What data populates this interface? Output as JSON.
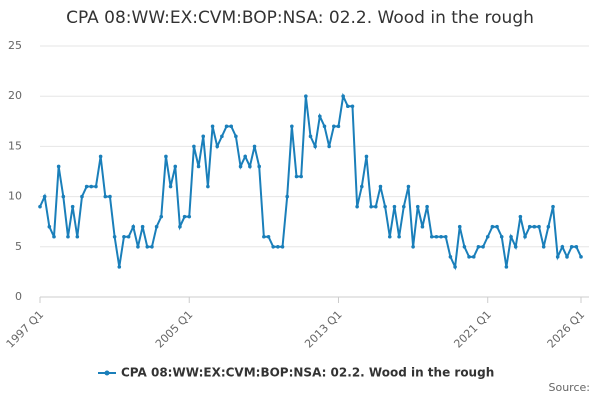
{
  "chart_data": {
    "type": "line",
    "title": "CPA 08:WW:EX:CVM:BOP:NSA: 02.2. Wood in the rough",
    "source": "Source:",
    "categories": [
      "1997 Q1",
      null,
      null,
      null,
      null,
      null,
      null,
      null,
      null,
      null,
      null,
      null,
      null,
      null,
      null,
      null,
      null,
      null,
      null,
      null,
      null,
      null,
      null,
      null,
      null,
      null,
      null,
      null,
      null,
      null,
      null,
      null,
      "2005 Q1",
      null,
      null,
      null,
      null,
      null,
      null,
      null,
      null,
      null,
      null,
      null,
      null,
      null,
      null,
      null,
      null,
      null,
      null,
      null,
      null,
      null,
      null,
      null,
      null,
      null,
      null,
      null,
      null,
      null,
      null,
      null,
      "2013 Q1",
      null,
      null,
      null,
      null,
      null,
      null,
      null,
      null,
      null,
      null,
      null,
      null,
      null,
      null,
      null,
      null,
      null,
      null,
      null,
      null,
      null,
      null,
      null,
      null,
      null,
      null,
      null,
      null,
      null,
      null,
      null,
      "2021 Q1",
      null,
      null,
      null,
      null,
      null,
      null,
      null,
      null,
      null,
      null,
      null,
      null,
      null,
      null,
      null,
      null,
      null,
      null,
      null,
      "2026 Q1"
    ],
    "series": [
      {
        "name": "CPA 08:WW:EX:CVM:BOP:NSA: 02.2. Wood in the rough",
        "color": "#1a7fba",
        "values": [
          9,
          10,
          7,
          6,
          13,
          10,
          6,
          9,
          6,
          10,
          11,
          11,
          11,
          14,
          10,
          10,
          6,
          3,
          6,
          6,
          7,
          5,
          7,
          5,
          5,
          7,
          8,
          14,
          11,
          13,
          7,
          8,
          8,
          15,
          13,
          16,
          11,
          17,
          15,
          16,
          17,
          17,
          16,
          13,
          14,
          13,
          15,
          13,
          6,
          6,
          5,
          5,
          5,
          10,
          17,
          12,
          12,
          20,
          16,
          15,
          18,
          17,
          15,
          17,
          17,
          20,
          19,
          19,
          9,
          11,
          14,
          9,
          9,
          11,
          9,
          6,
          9,
          6,
          9,
          11,
          5,
          9,
          7,
          9,
          6,
          6,
          6,
          6,
          4,
          3,
          7,
          5,
          4,
          4,
          5,
          5,
          6,
          7,
          7,
          6,
          3,
          6,
          5,
          8,
          6,
          7,
          7,
          7,
          5,
          7,
          9,
          4,
          5,
          4,
          5,
          5,
          4
        ]
      }
    ],
    "ylim": [
      0,
      25
    ],
    "yticks": [
      0,
      5,
      10,
      15,
      20,
      25
    ],
    "grid": true
  }
}
